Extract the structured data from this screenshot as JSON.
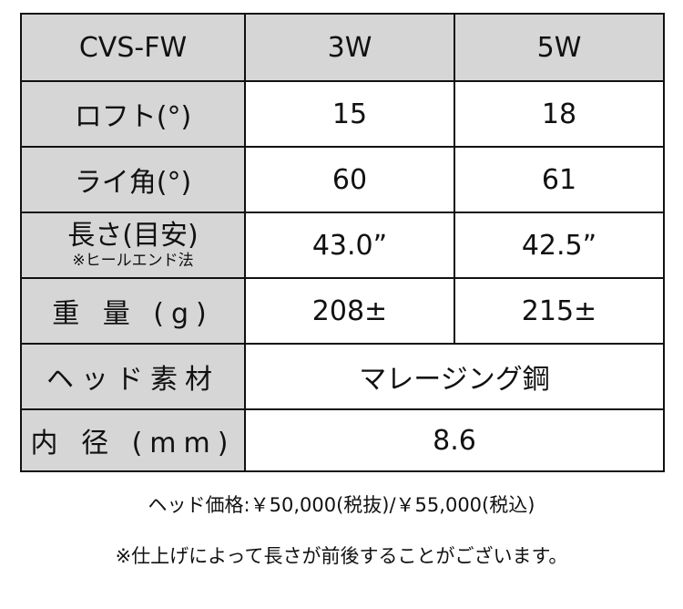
{
  "table": {
    "header": [
      "CVS-FW",
      "3W",
      "5W"
    ],
    "rows": [
      {
        "label": "ロフト(°)",
        "values": [
          "15",
          "18"
        ]
      },
      {
        "label": "ライ角(°)",
        "values": [
          "60",
          "61"
        ]
      },
      {
        "label": "長さ(目安)",
        "sublabel": "※ヒールエンド法",
        "values": [
          "43.0”",
          "42.5”"
        ]
      },
      {
        "label": "重 量 (g)",
        "values": [
          "208±",
          "215±"
        ]
      },
      {
        "label": "ヘッド素材",
        "value": "マレージング鋼"
      },
      {
        "label": "内 径 (mm)",
        "value": "8.6"
      }
    ]
  },
  "notes": {
    "price": "ヘッド価格:￥50,000(税抜)/￥55,000(税込)",
    "disclaimer": "※仕上げによって長さが前後することがございます。"
  },
  "colors": {
    "header_bg": "#d6d6d6",
    "border": "#111111"
  }
}
